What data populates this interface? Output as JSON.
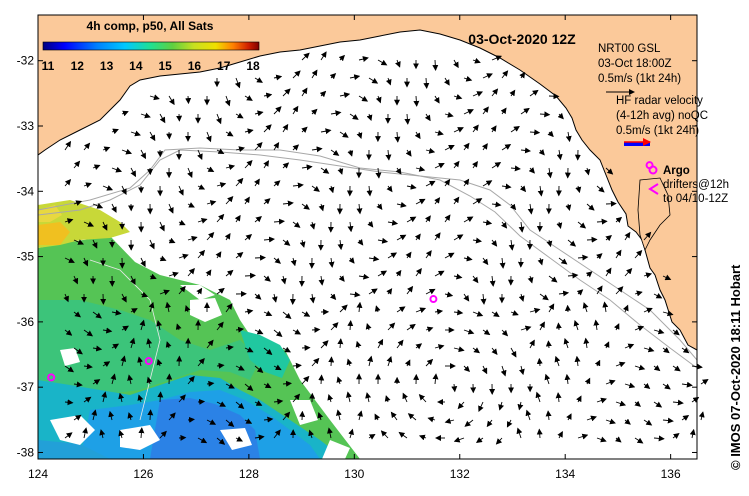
{
  "legend": {
    "title": "4h comp, p50, All Sats",
    "ticks": [
      "11",
      "12",
      "13",
      "14",
      "15",
      "16",
      "17",
      "18"
    ],
    "colors": [
      "#00007f",
      "#0000ff",
      "#0080ff",
      "#00c8ff",
      "#20e090",
      "#40c840",
      "#a0d020",
      "#f0e000",
      "#ff8000",
      "#c02000",
      "#800000"
    ]
  },
  "timestamp": "03-Oct-2020 12Z",
  "nrt": {
    "line1": "NRT00 GSL",
    "line2": "03-Oct 18:00Z",
    "line3": "0.5m/s (1kt 24h)"
  },
  "hf": {
    "line1": "HF radar velocity",
    "line2": "(4-12h avg) noQC",
    "line3": "0.5m/s (1kt 24h)"
  },
  "argo": {
    "label": "Argo",
    "line1": "drifters@12h",
    "line2": "to 04/10-12Z"
  },
  "credit": "© IMOS 07-Oct-2020 18:11 Hobart",
  "axes": {
    "x_ticks": [
      "124",
      "126",
      "128",
      "130",
      "132",
      "134",
      "136"
    ],
    "y_ticks": [
      "-32",
      "-33",
      "-34",
      "-35",
      "-36",
      "-37",
      "-38"
    ]
  },
  "map_data": {
    "lon_range": [
      124,
      136.5
    ],
    "lat_range": [
      -38.1,
      -31.3
    ],
    "argo_floats": [
      {
        "lon": 131.5,
        "lat": -35.65
      },
      {
        "lon": 126.1,
        "lat": -36.6
      },
      {
        "lon": 124.25,
        "lat": -36.85
      },
      {
        "lon": 135.6,
        "lat": -33.6
      }
    ],
    "colors": {
      "land": "#fbc99a",
      "coast": "#000000",
      "isobath": "#a0a0a0",
      "hf_arrow": "#ff0000",
      "argo": "#ff00ff"
    }
  }
}
